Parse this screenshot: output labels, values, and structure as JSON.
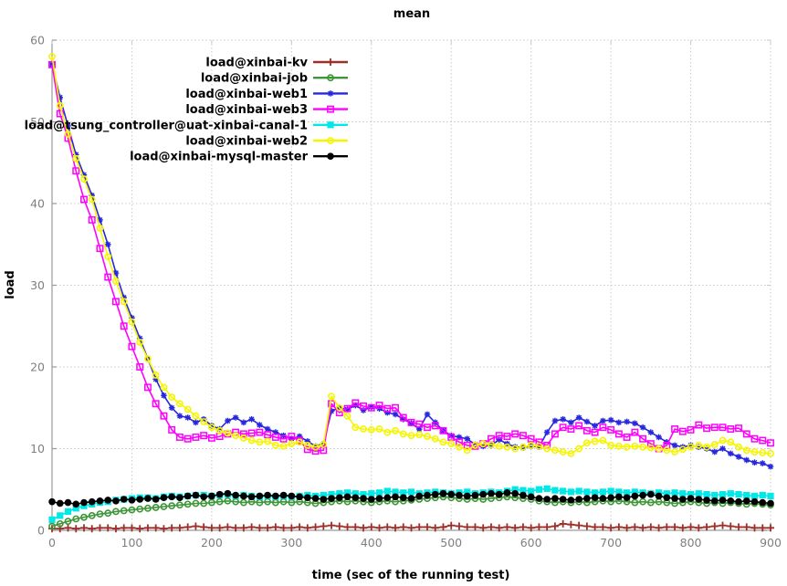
{
  "chart_data": {
    "type": "line",
    "title": "mean",
    "xlabel": "time (sec of the running test)",
    "ylabel": "load",
    "xlim": [
      0,
      900
    ],
    "ylim": [
      0,
      60
    ],
    "xticks": [
      0,
      100,
      200,
      300,
      400,
      500,
      600,
      700,
      800,
      900
    ],
    "yticks": [
      0,
      10,
      20,
      30,
      40,
      50,
      60
    ],
    "grid": true,
    "legend_position": "inside-top-left",
    "x_step_seconds": 10,
    "series": [
      {
        "name": "load@xinbai-kv",
        "color": "#9e2f28",
        "marker": "plus",
        "values": [
          0.2,
          0.2,
          0.3,
          0.2,
          0.3,
          0.2,
          0.3,
          0.3,
          0.2,
          0.3,
          0.3,
          0.2,
          0.3,
          0.3,
          0.2,
          0.3,
          0.3,
          0.4,
          0.5,
          0.4,
          0.3,
          0.3,
          0.4,
          0.3,
          0.3,
          0.4,
          0.3,
          0.3,
          0.4,
          0.3,
          0.3,
          0.4,
          0.3,
          0.4,
          0.5,
          0.6,
          0.5,
          0.4,
          0.4,
          0.3,
          0.4,
          0.3,
          0.4,
          0.3,
          0.4,
          0.3,
          0.4,
          0.4,
          0.3,
          0.4,
          0.6,
          0.5,
          0.4,
          0.4,
          0.3,
          0.4,
          0.3,
          0.4,
          0.3,
          0.4,
          0.3,
          0.4,
          0.4,
          0.5,
          0.8,
          0.7,
          0.6,
          0.5,
          0.4,
          0.4,
          0.3,
          0.4,
          0.3,
          0.4,
          0.3,
          0.4,
          0.3,
          0.4,
          0.4,
          0.3,
          0.4,
          0.3,
          0.4,
          0.5,
          0.6,
          0.5,
          0.4,
          0.4,
          0.3,
          0.3,
          0.3
        ]
      },
      {
        "name": "load@xinbai-job",
        "color": "#3f9639",
        "marker": "circle-open",
        "values": [
          0.5,
          0.8,
          1.1,
          1.4,
          1.6,
          1.8,
          2,
          2.1,
          2.3,
          2.4,
          2.5,
          2.6,
          2.7,
          2.8,
          2.9,
          3,
          3.1,
          3.2,
          3.3,
          3.3,
          3.4,
          3.5,
          3.6,
          3.5,
          3.4,
          3.5,
          3.4,
          3.5,
          3.4,
          3.5,
          3.4,
          3.5,
          3.4,
          3.3,
          3.4,
          3.5,
          3.6,
          3.5,
          3.6,
          3.5,
          3.4,
          3.5,
          3.6,
          3.5,
          3.6,
          3.7,
          3.8,
          3.9,
          4,
          4.1,
          4,
          3.9,
          3.8,
          3.9,
          3.8,
          3.9,
          4,
          4.1,
          4,
          3.9,
          3.8,
          3.6,
          3.5,
          3.4,
          3.5,
          3.4,
          3.5,
          3.4,
          3.5,
          3.6,
          3.5,
          3.6,
          3.5,
          3.4,
          3.5,
          3.4,
          3.5,
          3.4,
          3.3,
          3.4,
          3.5,
          3.4,
          3.3,
          3.4,
          3.3,
          3.4,
          3.3,
          3.2,
          3.3,
          3.2,
          3.1
        ]
      },
      {
        "name": "load@xinbai-web1",
        "color": "#2727dd",
        "marker": "asterisk",
        "values": [
          57,
          53,
          49.5,
          46,
          43.5,
          41,
          38,
          35,
          31.5,
          28.5,
          26,
          23.5,
          21,
          18.5,
          16.5,
          15,
          14,
          13.8,
          13.2,
          13.6,
          12.8,
          12.4,
          13.4,
          13.8,
          13.2,
          13.6,
          12.9,
          12.4,
          12,
          11.6,
          11.2,
          11.5,
          10.9,
          10.3,
          10.6,
          14.6,
          15,
          14.8,
          15.3,
          14.7,
          15.1,
          14.9,
          14.4,
          14.2,
          13.6,
          13.1,
          12.4,
          14.2,
          13.2,
          12.2,
          11.6,
          11.4,
          11.2,
          10.5,
          10.3,
          10.4,
          11.1,
          10.6,
          10.2,
          10.1,
          10.3,
          10.2,
          12,
          13.4,
          13.6,
          13.2,
          13.8,
          13.3,
          12.8,
          13.4,
          13.5,
          13.2,
          13.3,
          13.1,
          12.6,
          12,
          11.4,
          10.8,
          10.4,
          10.2,
          10.4,
          10.2,
          10,
          9.6,
          10,
          9.4,
          9,
          8.6,
          8.3,
          8.2,
          7.8
        ]
      },
      {
        "name": "load@xinbai-web3",
        "color": "#ff00ff",
        "marker": "square-open",
        "values": [
          57,
          51,
          48,
          44,
          40.5,
          38,
          34.5,
          31,
          28,
          25,
          22.5,
          20,
          17.5,
          15.5,
          14,
          12.3,
          11.4,
          11.2,
          11.4,
          11.6,
          11.3,
          11.5,
          11.8,
          12,
          11.8,
          11.9,
          12,
          11.7,
          11.4,
          11.2,
          11.5,
          11,
          9.9,
          9.7,
          9.8,
          15.5,
          14.4,
          14.9,
          15.6,
          15.2,
          15,
          15.3,
          14.9,
          15,
          13.8,
          13.2,
          13,
          12.6,
          12.8,
          12.2,
          11.4,
          10.8,
          10.4,
          10.3,
          10.6,
          11.2,
          11.6,
          11.5,
          11.8,
          11.6,
          11.2,
          10.8,
          10.4,
          11.8,
          12.6,
          12.4,
          12.8,
          12.2,
          12,
          12.6,
          12.3,
          11.8,
          11.4,
          12,
          11.2,
          10.6,
          10,
          10.4,
          12.4,
          12.1,
          12.3,
          12.9,
          12.5,
          12.6,
          12.6,
          12.4,
          12.5,
          11.8,
          11.2,
          11,
          10.7
        ]
      },
      {
        "name": "load@tsung_controller@uat-xinbai-canal-1",
        "color": "#00e8e8",
        "marker": "square-filled",
        "values": [
          1.3,
          1.8,
          2.3,
          2.7,
          3,
          3.2,
          3.4,
          3.5,
          3.7,
          3.8,
          3.9,
          4,
          4,
          3.9,
          4.1,
          4.2,
          4.1,
          4.2,
          4.3,
          4.3,
          4.2,
          4.3,
          4.4,
          4.2,
          4.3,
          4.2,
          4.1,
          4.2,
          4.1,
          4.2,
          4.1,
          4.2,
          4.3,
          4.2,
          4.3,
          4.4,
          4.5,
          4.6,
          4.5,
          4.4,
          4.5,
          4.6,
          4.8,
          4.7,
          4.6,
          4.7,
          4.5,
          4.6,
          4.7,
          4.6,
          4.5,
          4.6,
          4.7,
          4.5,
          4.6,
          4.7,
          4.6,
          4.8,
          5,
          4.9,
          4.8,
          5,
          5.1,
          4.9,
          4.8,
          4.7,
          4.8,
          4.7,
          4.6,
          4.7,
          4.8,
          4.7,
          4.6,
          4.7,
          4.6,
          4.5,
          4.6,
          4.5,
          4.6,
          4.5,
          4.4,
          4.5,
          4.4,
          4.3,
          4.4,
          4.5,
          4.4,
          4.3,
          4.2,
          4.3,
          4.2
        ]
      },
      {
        "name": "load@xinbai-web2",
        "color": "#f5f500",
        "marker": "circle-open",
        "values": [
          58,
          52,
          48.5,
          45.5,
          43,
          40.5,
          37,
          33.5,
          30.5,
          28,
          25.5,
          23,
          21,
          19,
          17.5,
          16.3,
          15.5,
          14.8,
          14,
          13.3,
          12.6,
          12.2,
          11.9,
          11.6,
          11.3,
          11,
          10.8,
          10.9,
          10.4,
          10.3,
          10.6,
          10.8,
          10.4,
          10.2,
          10.5,
          16.4,
          15,
          14,
          12.6,
          12.4,
          12.3,
          12.4,
          12,
          12.2,
          11.8,
          11.6,
          11.7,
          11.5,
          11.2,
          10.8,
          10.6,
          10.2,
          9.8,
          10.4,
          10.6,
          10.5,
          10.3,
          10.2,
          10,
          10.2,
          10.4,
          10.3,
          10,
          9.8,
          9.6,
          9.4,
          10,
          10.7,
          10.9,
          11,
          10.4,
          10.3,
          10.2,
          10.3,
          10.2,
          10.1,
          10,
          9.8,
          9.6,
          9.9,
          10.2,
          10.4,
          10.2,
          10.5,
          11,
          10.8,
          10.2,
          9.8,
          9.6,
          9.5,
          9.4
        ]
      },
      {
        "name": "load@xinbai-mysql-master",
        "color": "#000000",
        "marker": "circle-filled",
        "values": [
          3.5,
          3.3,
          3.4,
          3.2,
          3.4,
          3.5,
          3.6,
          3.7,
          3.6,
          3.8,
          3.7,
          3.8,
          3.9,
          3.8,
          4,
          4.1,
          4,
          4.2,
          4.3,
          4.1,
          4.2,
          4.4,
          4.5,
          4.3,
          4.2,
          4.1,
          4.2,
          4.3,
          4.2,
          4.3,
          4.2,
          4.1,
          4,
          3.9,
          3.8,
          3.9,
          4,
          4.1,
          4,
          3.9,
          3.8,
          3.9,
          4,
          4.1,
          4,
          3.9,
          4.2,
          4.3,
          4.4,
          4.5,
          4.4,
          4.3,
          4.2,
          4.3,
          4.4,
          4.5,
          4.4,
          4.6,
          4.5,
          4.3,
          4.1,
          3.9,
          3.8,
          3.9,
          3.8,
          3.7,
          3.8,
          3.9,
          4,
          3.9,
          4,
          4.1,
          4,
          4.2,
          4.3,
          4.4,
          4.2,
          4,
          3.9,
          3.8,
          3.9,
          3.8,
          3.7,
          3.6,
          3.7,
          3.6,
          3.5,
          3.6,
          3.5,
          3.4,
          3.3
        ]
      }
    ]
  },
  "colors": {
    "background": "#ffffff",
    "grid": "#c9c9c9",
    "axis": "#9a9a9a",
    "tick_label": "#7f7f7f",
    "text": "#000000"
  }
}
